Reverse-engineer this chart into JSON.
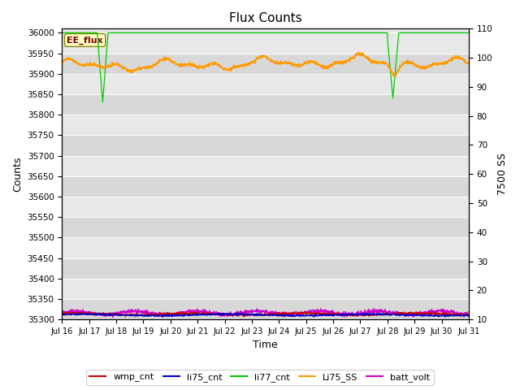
{
  "title": "Flux Counts",
  "ylabel_left": "Counts",
  "ylabel_right": "7500 SS",
  "xlabel": "Time",
  "ylim_left": [
    35300,
    36010
  ],
  "ylim_right": [
    10,
    110
  ],
  "yticks_left": [
    35300,
    35350,
    35400,
    35450,
    35500,
    35550,
    35600,
    35650,
    35700,
    35750,
    35800,
    35850,
    35900,
    35950,
    36000
  ],
  "yticks_right": [
    10,
    20,
    30,
    40,
    50,
    60,
    70,
    80,
    90,
    100,
    110
  ],
  "bg_color": "#e8e8e8",
  "bg_color2": "#d0d0d0",
  "grid_color": "#ffffff",
  "annotation_text": "EE_flux",
  "annotation_bg": "#ffffcc",
  "annotation_border": "#888800",
  "legend_entries": [
    "wmp_cnt",
    "li75_cnt",
    "li77_cnt",
    "Li75_SS",
    "batt_volt"
  ],
  "legend_colors": [
    "#cc0000",
    "#0000cc",
    "#00cc00",
    "#ff9900",
    "#cc00cc"
  ]
}
